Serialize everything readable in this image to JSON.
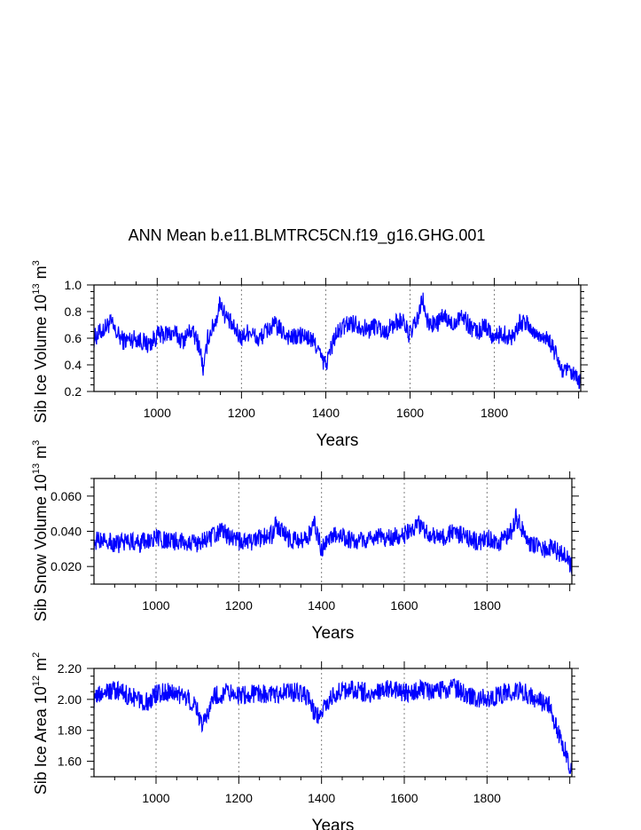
{
  "title": "ANN Mean b.e11.BLMTRC5CN.f19_g16.GHG.001",
  "colors": {
    "series": "#0000ff",
    "axis": "#000000",
    "grid": "#808080"
  },
  "chart_data": [
    {
      "type": "line",
      "title": "ANN Mean b.e11.BLMTRC5CN.f19_g16.GHG.001",
      "ylabel": {
        "main": "Sib Ice Volume 10",
        "exp": "13",
        "unit": "m",
        "unit_exp": "3"
      },
      "xlabel": "Years",
      "xlim": [
        850,
        2005
      ],
      "ylim": [
        0.2,
        1.0
      ],
      "xticks": [
        1000,
        1200,
        1400,
        1600,
        1800
      ],
      "xtick_labels": [
        "1000",
        "1200",
        "1400",
        "1600",
        "1800"
      ],
      "yticks": [
        0.2,
        0.4,
        0.6,
        0.8,
        1.0
      ],
      "ytick_labels": [
        "0.2",
        "0.4",
        "0.6",
        "0.8",
        "1.0"
      ],
      "grid": "vertical dotted at x ticks",
      "series": [
        {
          "x": [
            850,
            870,
            890,
            900,
            920,
            950,
            980,
            1000,
            1020,
            1040,
            1060,
            1080,
            1100,
            1110,
            1120,
            1140,
            1150,
            1160,
            1180,
            1200,
            1220,
            1240,
            1260,
            1280,
            1300,
            1320,
            1340,
            1360,
            1380,
            1390,
            1400,
            1420,
            1440,
            1460,
            1480,
            1500,
            1520,
            1540,
            1560,
            1580,
            1600,
            1620,
            1630,
            1640,
            1660,
            1680,
            1700,
            1720,
            1740,
            1760,
            1780,
            1800,
            1820,
            1840,
            1860,
            1880,
            1900,
            1920,
            1940,
            1960,
            1980,
            2005
          ],
          "y": [
            0.6,
            0.66,
            0.72,
            0.65,
            0.58,
            0.6,
            0.55,
            0.62,
            0.63,
            0.64,
            0.58,
            0.66,
            0.55,
            0.35,
            0.6,
            0.74,
            0.88,
            0.78,
            0.68,
            0.6,
            0.66,
            0.58,
            0.66,
            0.7,
            0.64,
            0.6,
            0.62,
            0.6,
            0.54,
            0.44,
            0.4,
            0.6,
            0.68,
            0.72,
            0.7,
            0.66,
            0.7,
            0.64,
            0.7,
            0.74,
            0.62,
            0.76,
            0.9,
            0.72,
            0.7,
            0.76,
            0.7,
            0.78,
            0.7,
            0.64,
            0.7,
            0.6,
            0.64,
            0.6,
            0.72,
            0.7,
            0.62,
            0.62,
            0.52,
            0.36,
            0.34,
            0.26
          ]
        }
      ]
    },
    {
      "type": "line",
      "ylabel": {
        "main": "Sib Snow Volume 10",
        "exp": "13",
        "unit": "m",
        "unit_exp": "3"
      },
      "xlabel": "Years",
      "xlim": [
        850,
        2005
      ],
      "ylim": [
        0.01,
        0.07
      ],
      "xticks": [
        1000,
        1200,
        1400,
        1600,
        1800
      ],
      "xtick_labels": [
        "1000",
        "1200",
        "1400",
        "1600",
        "1800"
      ],
      "yticks": [
        0.02,
        0.04,
        0.06
      ],
      "ytick_labels": [
        "0.020",
        "0.040",
        "0.060"
      ],
      "grid": "vertical dotted at x ticks",
      "series": [
        {
          "x": [
            850,
            880,
            900,
            930,
            960,
            1000,
            1030,
            1060,
            1100,
            1130,
            1160,
            1190,
            1220,
            1250,
            1280,
            1290,
            1320,
            1350,
            1370,
            1380,
            1400,
            1430,
            1460,
            1500,
            1530,
            1560,
            1600,
            1620,
            1630,
            1660,
            1690,
            1720,
            1750,
            1780,
            1800,
            1830,
            1860,
            1870,
            1900,
            1930,
            1960,
            1990,
            2005
          ],
          "y": [
            0.034,
            0.036,
            0.032,
            0.035,
            0.033,
            0.036,
            0.034,
            0.035,
            0.033,
            0.036,
            0.04,
            0.035,
            0.033,
            0.036,
            0.038,
            0.044,
            0.036,
            0.034,
            0.038,
            0.046,
            0.03,
            0.038,
            0.036,
            0.034,
            0.037,
            0.036,
            0.038,
            0.04,
            0.045,
            0.038,
            0.036,
            0.04,
            0.036,
            0.034,
            0.036,
            0.034,
            0.04,
            0.048,
            0.034,
            0.03,
            0.03,
            0.026,
            0.02
          ]
        }
      ]
    },
    {
      "type": "line",
      "ylabel": {
        "main": "Sib Ice Area 10",
        "exp": "12",
        "unit": "m",
        "unit_exp": "2"
      },
      "xlabel": "Years",
      "xlim": [
        850,
        2005
      ],
      "ylim": [
        1.5,
        2.2
      ],
      "xticks": [
        1000,
        1200,
        1400,
        1600,
        1800
      ],
      "xtick_labels": [
        "1000",
        "1200",
        "1400",
        "1600",
        "1800"
      ],
      "yticks": [
        1.6,
        1.8,
        2.0,
        2.2
      ],
      "ytick_labels": [
        "1.60",
        "1.80",
        "2.00",
        "2.20"
      ],
      "grid": "vertical dotted at x ticks",
      "series": [
        {
          "x": [
            850,
            870,
            900,
            940,
            980,
            1000,
            1040,
            1080,
            1100,
            1110,
            1140,
            1180,
            1200,
            1240,
            1280,
            1320,
            1360,
            1390,
            1400,
            1440,
            1480,
            1520,
            1560,
            1600,
            1640,
            1680,
            1720,
            1760,
            1800,
            1840,
            1880,
            1920,
            1950,
            1970,
            1990,
            2005
          ],
          "y": [
            2.0,
            2.04,
            2.06,
            2.02,
            1.98,
            2.04,
            2.05,
            2.0,
            1.94,
            1.82,
            2.02,
            2.05,
            2.02,
            2.04,
            2.03,
            2.05,
            2.04,
            1.88,
            1.94,
            2.05,
            2.06,
            2.04,
            2.07,
            2.04,
            2.06,
            2.05,
            2.08,
            2.02,
            2.0,
            2.04,
            2.06,
            2.0,
            1.96,
            1.8,
            1.66,
            1.52
          ]
        }
      ]
    }
  ]
}
